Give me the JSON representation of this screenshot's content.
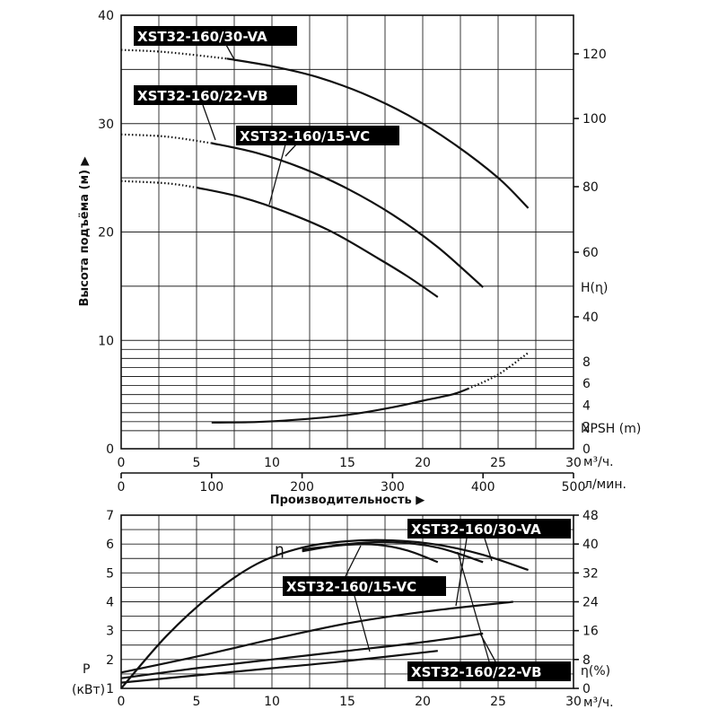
{
  "chart_data": [
    {
      "type": "line",
      "name_key": "head",
      "ylabel": "Высота подъёма (м) ▶",
      "x_units_label": "м³/ч.",
      "x2_units_label": "л/мин.",
      "xlabel": "Производительность ▶",
      "xlim": [
        0,
        30
      ],
      "ylim": [
        0,
        40
      ],
      "x_ticks": [
        "0",
        "5",
        "10",
        "15",
        "20",
        "25",
        "30"
      ],
      "x2_ticks": [
        "0",
        "100",
        "200",
        "300",
        "400",
        "500"
      ],
      "y_ticks": [
        "0",
        "10",
        "20",
        "30",
        "40"
      ],
      "right_head_ticks": [
        "40",
        "60",
        "80",
        "100",
        "120"
      ],
      "right_head_label": "H(ɳ)",
      "right_npsh_ticks": [
        "0",
        "2",
        "4",
        "6",
        "8"
      ],
      "right_npsh_label": "NPSH (m)",
      "series": [
        {
          "name": "XST32-160/30-VA",
          "dotted_until": 7,
          "x": [
            0,
            3,
            7,
            10,
            13,
            16,
            19,
            22,
            25,
            27
          ],
          "y": [
            36.8,
            36.6,
            36.0,
            35.3,
            34.3,
            32.8,
            30.8,
            28.2,
            25.0,
            22.2
          ]
        },
        {
          "name": "XST32-160/22-VB",
          "dotted_until": 6,
          "x": [
            0,
            3,
            6,
            9,
            12,
            15,
            18,
            21,
            24
          ],
          "y": [
            29.0,
            28.8,
            28.2,
            27.3,
            25.9,
            24.0,
            21.6,
            18.6,
            14.9
          ]
        },
        {
          "name": "XST32-160/15-VC",
          "dotted_until": 5,
          "x": [
            0,
            3,
            5,
            8,
            11,
            14,
            17,
            19,
            21
          ],
          "y": [
            24.7,
            24.5,
            24.1,
            23.2,
            21.8,
            20.0,
            17.6,
            15.9,
            14.0
          ]
        }
      ],
      "npsh": {
        "dotted_from": 23,
        "x": [
          6,
          9,
          12,
          15,
          18,
          20,
          22,
          23,
          25,
          27
        ],
        "y": [
          2.4,
          2.45,
          2.7,
          3.1,
          3.8,
          4.4,
          5.0,
          5.5,
          6.8,
          8.8
        ]
      }
    },
    {
      "type": "line",
      "name_key": "power",
      "ylabel": "P (кВт)",
      "eta_label": "η",
      "xlim": [
        0,
        30
      ],
      "ylim": [
        1,
        7
      ],
      "x_ticks": [
        "0",
        "5",
        "10",
        "15",
        "20",
        "25",
        "30"
      ],
      "x_units_label": "м³/ч.",
      "y_ticks": [
        "1",
        "2",
        "3",
        "4",
        "5",
        "6",
        "7"
      ],
      "right_eta_ticks": [
        "0",
        "8",
        "16",
        "24",
        "32",
        "40",
        "48"
      ],
      "right_eta_label": "η(%)",
      "efficiency": [
        {
          "name": "XST32-160/30-VA",
          "x": [
            0,
            3,
            6,
            9,
            12,
            15,
            18,
            21,
            24,
            27
          ],
          "y": [
            0,
            14.5,
            26.0,
            34.5,
            39.0,
            40.8,
            41.0,
            39.8,
            37.0,
            32.8
          ]
        },
        {
          "name": "XST32-160/22-VB",
          "x": [
            12,
            15,
            18,
            21,
            24
          ],
          "y": [
            38.0,
            40.0,
            40.5,
            39.0,
            35.0
          ]
        },
        {
          "name": "XST32-160/15-VC",
          "x": [
            12,
            15,
            17,
            19,
            21
          ],
          "y": [
            38.5,
            39.8,
            39.8,
            38.2,
            35.0
          ]
        }
      ],
      "power": [
        {
          "name": "XST32-160/30-VA",
          "x": [
            0,
            5,
            10,
            15,
            20,
            26
          ],
          "y": [
            1.55,
            2.1,
            2.7,
            3.25,
            3.65,
            4.0
          ]
        },
        {
          "name": "XST32-160/22-VB",
          "x": [
            0,
            5,
            10,
            15,
            20,
            24
          ],
          "y": [
            1.35,
            1.7,
            2.0,
            2.3,
            2.6,
            2.9
          ]
        },
        {
          "name": "XST32-160/15-VC",
          "x": [
            0,
            5,
            10,
            15,
            21
          ],
          "y": [
            1.2,
            1.45,
            1.7,
            1.95,
            2.3
          ]
        }
      ]
    }
  ],
  "labels": {
    "va": "XST32-160/30-VA",
    "vb": "XST32-160/22-VB",
    "vc": "XST32-160/15-VC"
  }
}
